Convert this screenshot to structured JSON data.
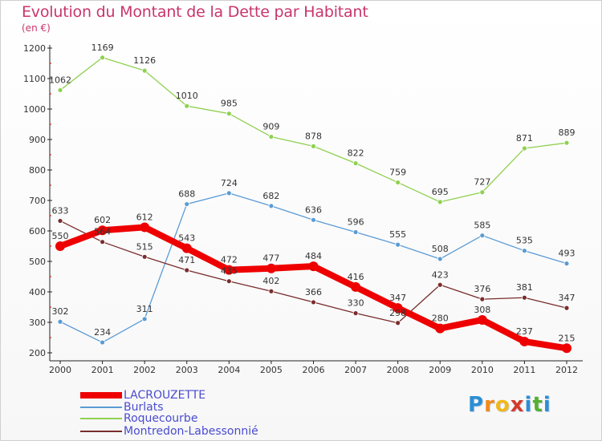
{
  "header": {
    "title": "Evolution du Montant de la Dette par Habitant",
    "unit": "(en €)"
  },
  "logo": {
    "text": "Proxiti",
    "letters": [
      "P",
      "r",
      "o",
      "x",
      "i",
      "t",
      "i"
    ],
    "colors": [
      "#2a8fd6",
      "#f08a1c",
      "#f0b91c",
      "#d23b2b",
      "#2a8fd6",
      "#55b030",
      "#2a8fd6"
    ]
  },
  "chart_data": {
    "type": "line",
    "title": "Evolution du Montant de la Dette par Habitant",
    "ylabel": "(en €)",
    "xlabel": "",
    "x": [
      "2000",
      "2001",
      "2002",
      "2003",
      "2004",
      "2005",
      "2006",
      "2007",
      "2008",
      "2009",
      "2010",
      "2011",
      "2012"
    ],
    "ylim": [
      200,
      1200
    ],
    "yticks": [
      200,
      300,
      400,
      500,
      600,
      700,
      800,
      900,
      1000,
      1100,
      1200
    ],
    "grid": false,
    "legend": "bottom-left",
    "series": [
      {
        "name": "LACROUZETTE",
        "color": "#ee0000",
        "values": [
          550,
          602,
          612,
          543,
          472,
          477,
          484,
          416,
          347,
          280,
          308,
          237,
          215
        ]
      },
      {
        "name": "Burlats",
        "color": "#5a9bd5",
        "values": [
          302,
          234,
          311,
          688,
          724,
          682,
          636,
          596,
          555,
          508,
          585,
          535,
          493
        ]
      },
      {
        "name": "Roquecourbe",
        "color": "#8fd150",
        "values": [
          1062,
          1169,
          1126,
          1010,
          985,
          909,
          878,
          822,
          759,
          695,
          727,
          871,
          889
        ]
      },
      {
        "name": "Montredon-Labessonnié",
        "color": "#7a2c2c",
        "values": [
          633,
          564,
          515,
          471,
          435,
          402,
          366,
          330,
          298,
          423,
          376,
          381,
          347
        ]
      }
    ]
  }
}
